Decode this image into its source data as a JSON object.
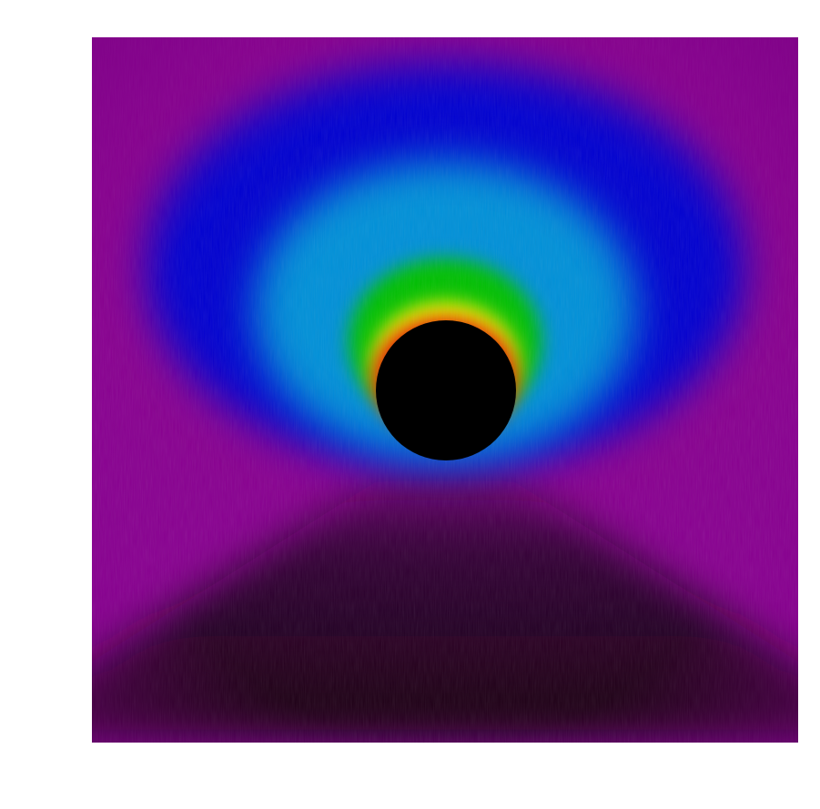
{
  "image": {
    "subject": "false-color-intensity-map-around-dark-sphere",
    "background_color": "#ffffff",
    "colors": {
      "outer_field": "#880090",
      "lower_shadow": "#140010",
      "blue_band": "#0000d0",
      "light_blue_band": "#0090d8",
      "green_band": "#00c000",
      "yellow_band": "#f0f000",
      "red_band": "#e00000",
      "core": "#000000"
    }
  }
}
